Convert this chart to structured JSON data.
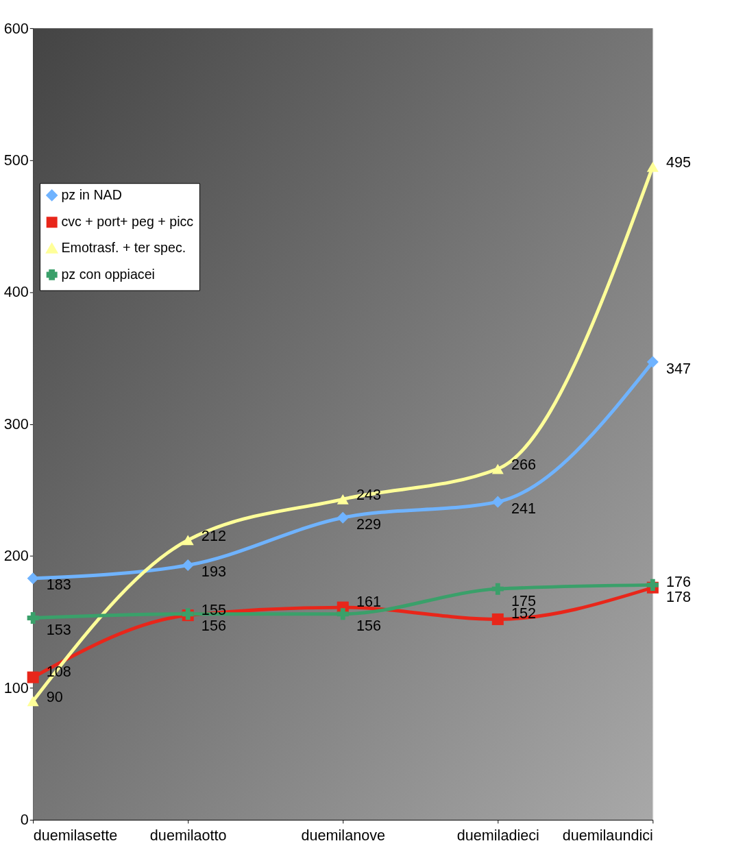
{
  "chart_data": {
    "type": "line",
    "categories": [
      "duemilasette",
      "duemilaotto",
      "duemilanove",
      "duemiladieci",
      "duemilaundici"
    ],
    "series": [
      {
        "name": "pz in NAD",
        "color": "#6fb3ff",
        "marker": "diamond",
        "values": [
          183,
          193,
          229,
          241,
          347
        ]
      },
      {
        "name": "cvc + port+ peg + picc",
        "color": "#e8261a",
        "marker": "square",
        "values": [
          108,
          155,
          161,
          152,
          176
        ]
      },
      {
        "name": "Emotrasf. + ter spec.",
        "color": "#ffff99",
        "marker": "triangle",
        "values": [
          90,
          212,
          243,
          266,
          495
        ]
      },
      {
        "name": "pz con oppiacei",
        "color": "#3aa06a",
        "marker": "cross",
        "values": [
          153,
          156,
          156,
          175,
          178
        ]
      }
    ],
    "ylim": [
      0,
      600
    ],
    "yticks": [
      0,
      100,
      200,
      300,
      400,
      500,
      600
    ],
    "grid": false,
    "legend": "top left",
    "data_labels": true,
    "line_style": "solid"
  }
}
